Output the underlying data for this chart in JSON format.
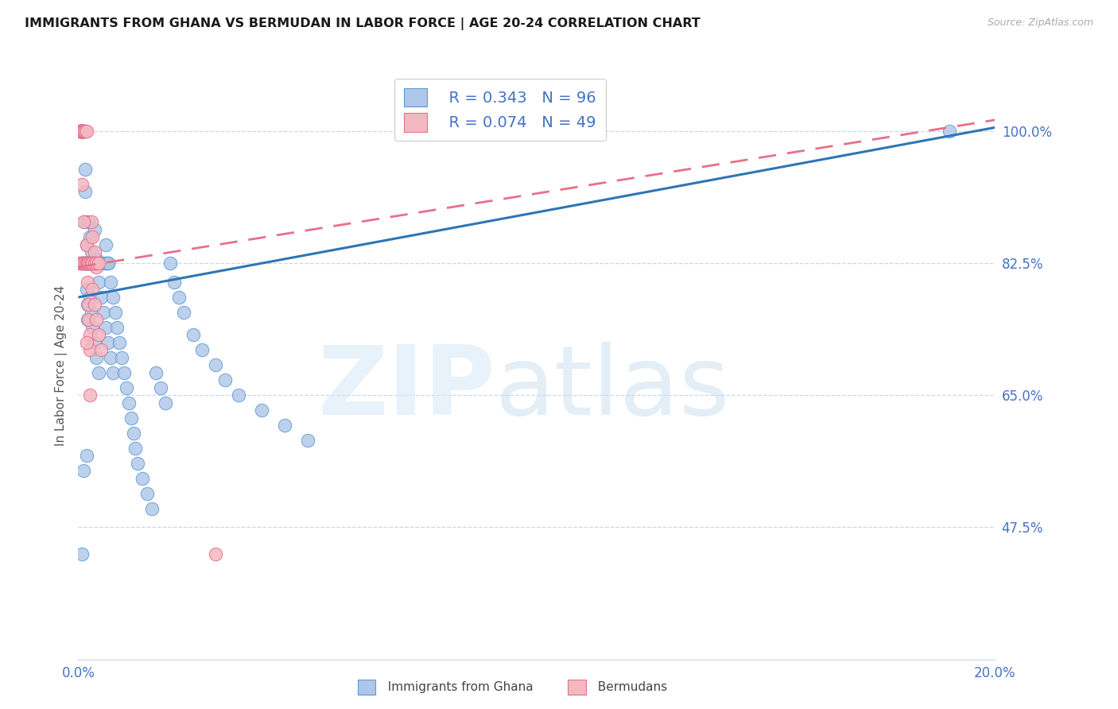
{
  "title": "IMMIGRANTS FROM GHANA VS BERMUDAN IN LABOR FORCE | AGE 20-24 CORRELATION CHART",
  "source": "Source: ZipAtlas.com",
  "ylabel": "In Labor Force | Age 20-24",
  "xlim": [
    0.0,
    20.0
  ],
  "ylim": [
    30.0,
    108.0
  ],
  "yticks": [
    47.5,
    65.0,
    82.5,
    100.0
  ],
  "ytick_labels": [
    "47.5%",
    "65.0%",
    "82.5%",
    "100.0%"
  ],
  "ghana_color": "#aec6e8",
  "ghana_edge": "#5b9bd5",
  "bermuda_color": "#f4b8c1",
  "bermuda_edge": "#e8708a",
  "ghana_R": 0.343,
  "ghana_N": 96,
  "bermuda_R": 0.074,
  "bermuda_N": 49,
  "text_blue": "#4472c4",
  "regression_blue": "#2e75b6",
  "regression_pink": "#e8708a",
  "blue_line": [
    0.0,
    78.0,
    20.0,
    100.5
  ],
  "pink_line": [
    0.0,
    82.0,
    20.0,
    101.5
  ],
  "ghana_x": [
    0.05,
    0.05,
    0.05,
    0.05,
    0.08,
    0.08,
    0.08,
    0.1,
    0.1,
    0.1,
    0.12,
    0.12,
    0.12,
    0.15,
    0.15,
    0.15,
    0.18,
    0.18,
    0.18,
    0.2,
    0.2,
    0.22,
    0.22,
    0.25,
    0.25,
    0.28,
    0.28,
    0.3,
    0.3,
    0.35,
    0.35,
    0.4,
    0.4,
    0.45,
    0.45,
    0.5,
    0.55,
    0.6,
    0.6,
    0.65,
    0.65,
    0.7,
    0.7,
    0.75,
    0.75,
    0.8,
    0.85,
    0.9,
    0.95,
    1.0,
    1.05,
    1.1,
    1.15,
    1.2,
    1.25,
    1.3,
    1.4,
    1.5,
    1.6,
    1.7,
    1.8,
    1.9,
    2.0,
    2.1,
    2.2,
    2.3,
    2.5,
    2.7,
    3.0,
    3.2,
    3.5,
    4.0,
    4.5,
    5.0,
    0.05,
    0.08,
    0.1,
    0.12,
    0.15,
    0.18,
    0.2,
    0.22,
    0.25,
    0.28,
    0.3,
    0.35,
    0.4,
    0.45,
    0.5,
    0.55,
    0.6,
    0.65,
    0.08,
    0.12,
    0.18,
    19.0
  ],
  "ghana_y": [
    100.0,
    100.0,
    100.0,
    100.0,
    100.0,
    100.0,
    100.0,
    100.0,
    100.0,
    100.0,
    100.0,
    100.0,
    100.0,
    95.0,
    92.0,
    88.0,
    85.0,
    82.5,
    79.0,
    77.0,
    75.0,
    88.0,
    82.5,
    86.0,
    78.0,
    84.0,
    76.0,
    82.5,
    74.0,
    87.0,
    72.0,
    83.0,
    70.0,
    80.0,
    68.0,
    78.0,
    76.0,
    85.0,
    74.0,
    82.5,
    72.0,
    80.0,
    70.0,
    78.0,
    68.0,
    76.0,
    74.0,
    72.0,
    70.0,
    68.0,
    66.0,
    64.0,
    62.0,
    60.0,
    58.0,
    56.0,
    54.0,
    52.0,
    50.0,
    68.0,
    66.0,
    64.0,
    82.5,
    80.0,
    78.0,
    76.0,
    73.0,
    71.0,
    69.0,
    67.0,
    65.0,
    63.0,
    61.0,
    59.0,
    82.5,
    82.5,
    82.5,
    82.5,
    82.5,
    82.5,
    82.5,
    82.5,
    82.5,
    82.5,
    82.5,
    82.5,
    82.5,
    82.5,
    82.5,
    82.5,
    82.5,
    82.5,
    44.0,
    55.0,
    57.0,
    100.0
  ],
  "bermuda_x": [
    0.05,
    0.05,
    0.05,
    0.08,
    0.08,
    0.08,
    0.1,
    0.1,
    0.12,
    0.12,
    0.15,
    0.15,
    0.18,
    0.18,
    0.2,
    0.2,
    0.22,
    0.22,
    0.25,
    0.25,
    0.28,
    0.28,
    0.3,
    0.3,
    0.35,
    0.35,
    0.4,
    0.4,
    0.45,
    0.5,
    0.05,
    0.08,
    0.1,
    0.12,
    0.15,
    0.18,
    0.2,
    0.22,
    0.25,
    0.28,
    0.3,
    0.35,
    0.4,
    0.45,
    0.08,
    0.12,
    0.18,
    0.25,
    3.0
  ],
  "bermuda_y": [
    100.0,
    100.0,
    100.0,
    100.0,
    100.0,
    100.0,
    100.0,
    100.0,
    100.0,
    100.0,
    100.0,
    100.0,
    100.0,
    85.0,
    82.5,
    80.0,
    77.0,
    75.0,
    73.0,
    71.0,
    88.0,
    82.5,
    86.0,
    79.0,
    84.0,
    77.0,
    82.0,
    75.0,
    73.0,
    71.0,
    82.5,
    82.5,
    82.5,
    82.5,
    82.5,
    82.5,
    82.5,
    82.5,
    82.5,
    82.5,
    82.5,
    82.5,
    82.5,
    82.5,
    93.0,
    88.0,
    72.0,
    65.0,
    44.0
  ]
}
